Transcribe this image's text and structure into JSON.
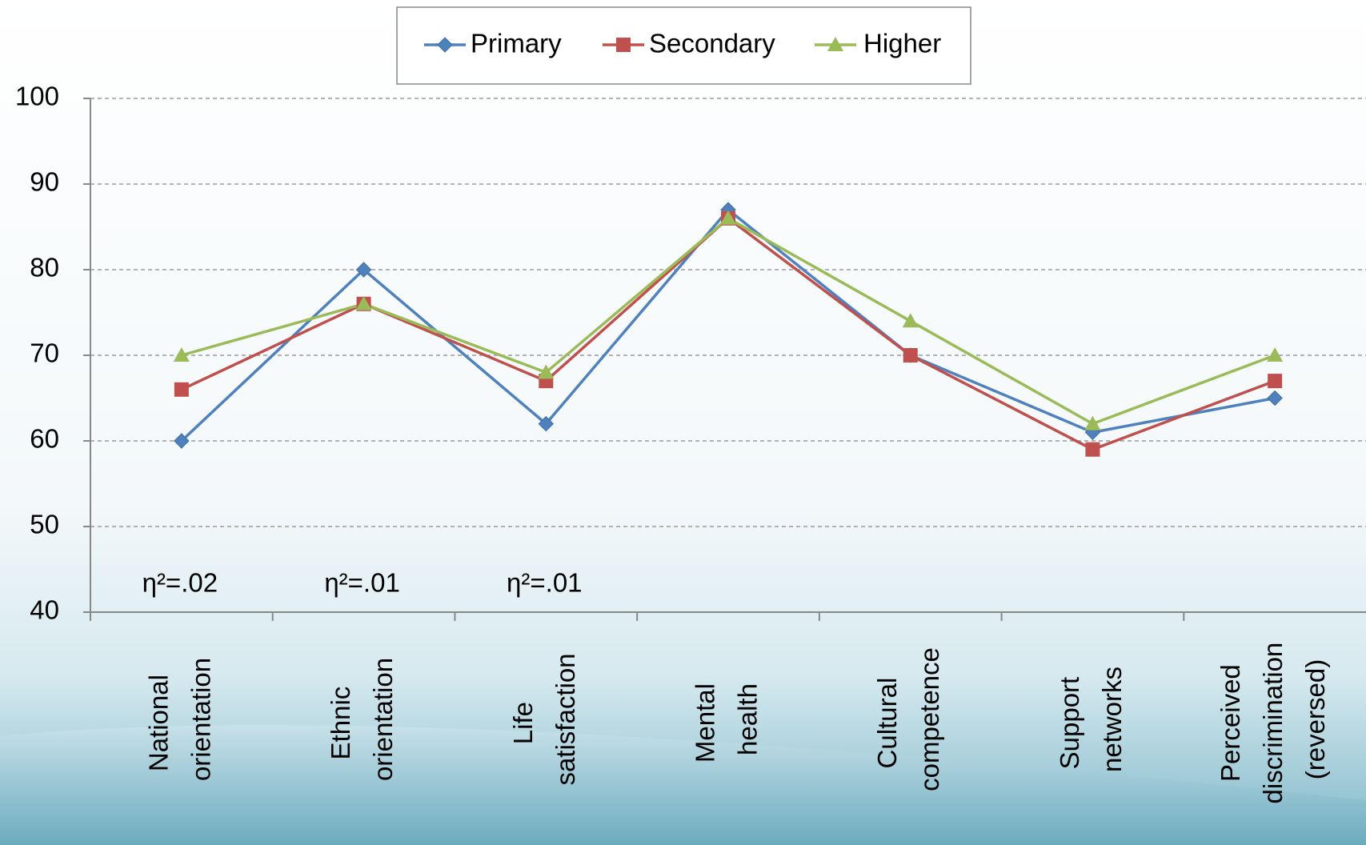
{
  "chart_data": {
    "type": "line",
    "categories": [
      "National orientation",
      "Ethnic orientation",
      "Life satisfaction",
      "Mental health",
      "Cultural competence",
      "Support networks",
      "Perceived discrimination (reversed)"
    ],
    "series": [
      {
        "name": "Primary",
        "color": "#4f81bd",
        "marker": "diamond",
        "values": [
          60,
          80,
          62,
          87,
          70,
          61,
          65
        ]
      },
      {
        "name": "Secondary",
        "color": "#c0504d",
        "marker": "square",
        "values": [
          66,
          76,
          67,
          86,
          70,
          59,
          67
        ]
      },
      {
        "name": "Higher",
        "color": "#9bbb59",
        "marker": "triangle",
        "values": [
          70,
          76,
          68,
          86,
          74,
          62,
          70
        ]
      }
    ],
    "annotations": [
      "η²=.02",
      "η²=.01",
      "η²=.01",
      null,
      null,
      null,
      null
    ],
    "ylim": [
      40,
      100
    ],
    "yticks": [
      40,
      50,
      60,
      70,
      80,
      90,
      100
    ],
    "grid": true,
    "legend": "top"
  }
}
